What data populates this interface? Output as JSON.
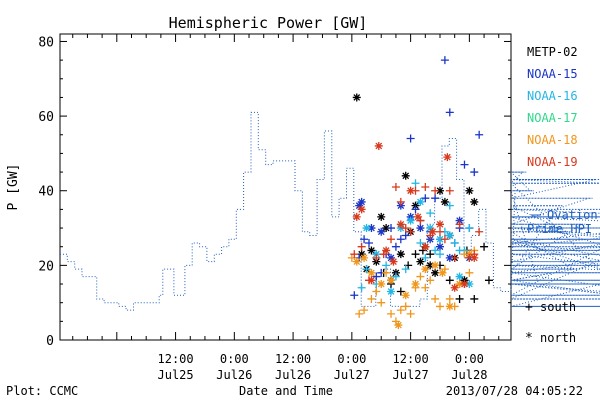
{
  "chart_data": {
    "type": "line",
    "title": "Hemispheric Power [GW]",
    "ylabel": "P [GW]",
    "xlabel": "Date and Time",
    "ylim": [
      0,
      82
    ],
    "yticks": [
      0,
      20,
      40,
      60,
      80
    ],
    "x_unit": "hours since 2013-07-24 00:00 UT",
    "xlim": [
      12.4,
      104.5
    ],
    "xticks": [
      {
        "x": 36,
        "line1": "12:00",
        "line2": "Jul25"
      },
      {
        "x": 48,
        "line1": "0:00",
        "line2": "Jul26"
      },
      {
        "x": 60,
        "line1": "12:00",
        "line2": "Jul26"
      },
      {
        "x": 72,
        "line1": "0:00",
        "line2": "Jul27"
      },
      {
        "x": 84,
        "line1": "12:00",
        "line2": "Jul27"
      },
      {
        "x": 96,
        "line1": "0:00",
        "line2": "Jul28"
      }
    ],
    "ovation": {
      "name_line1": "Ovation",
      "name_line2": "Prime HPI",
      "color": "#1e5fbf",
      "step_width": 0.75,
      "x_start": 12.4,
      "values": [
        23,
        23,
        21,
        21,
        19,
        19,
        17,
        17,
        17,
        17,
        11,
        11,
        10,
        10,
        10,
        10,
        9,
        9,
        8,
        8,
        10,
        10,
        10,
        10,
        10,
        10,
        10,
        12,
        19,
        19,
        19,
        12,
        12,
        12,
        20,
        20,
        26,
        26,
        25,
        25,
        21,
        21,
        23,
        23,
        25,
        25,
        27,
        27,
        35,
        35,
        45,
        45,
        61,
        61,
        51,
        51,
        47,
        47,
        48,
        48,
        48,
        48,
        48,
        48,
        40,
        40,
        29,
        29,
        28,
        28,
        43,
        43,
        56,
        56,
        33,
        33,
        38,
        38,
        46,
        46,
        29,
        29,
        9,
        9,
        9,
        9,
        17,
        17,
        19,
        19,
        9,
        9,
        9,
        9,
        9,
        9,
        9,
        9,
        11,
        11,
        31,
        31,
        38,
        38,
        52,
        52,
        54,
        54,
        43,
        43,
        22,
        22,
        28,
        28,
        35,
        35,
        26,
        26,
        14,
        14,
        13,
        13,
        13,
        13,
        42,
        42,
        45,
        45,
        40,
        40,
        16,
        16,
        16,
        16,
        18,
        18,
        36,
        36,
        29,
        29,
        19,
        19,
        31,
        31,
        38,
        38,
        43,
        43,
        42,
        42,
        16,
        16,
        21,
        21,
        27,
        27,
        16,
        16,
        11,
        11,
        27,
        27,
        20,
        20,
        18,
        18,
        12,
        12,
        35,
        35,
        33,
        33,
        18,
        18,
        25,
        25,
        30,
        30,
        26,
        26,
        15,
        15,
        9,
        9,
        24,
        24,
        26,
        26,
        33,
        33,
        33,
        33,
        30,
        30,
        23,
        23,
        15,
        15,
        9,
        9,
        9,
        9,
        9,
        9,
        9
      ]
    },
    "markers": {
      "south_label": "south",
      "north_label": "north",
      "south_symbol": "+",
      "north_symbol": "*"
    },
    "series": [
      {
        "name": "METP-02",
        "color": "#000000",
        "south": [
          [
            78.5,
            18
          ],
          [
            80,
            15
          ],
          [
            82,
            13
          ],
          [
            83.5,
            20
          ],
          [
            85,
            23
          ],
          [
            86.5,
            24
          ],
          [
            88,
            23
          ],
          [
            90,
            20
          ],
          [
            92,
            16
          ],
          [
            94,
            11
          ],
          [
            95.5,
            24
          ],
          [
            97,
            11
          ],
          [
            99,
            25
          ],
          [
            100,
            16
          ]
        ],
        "north": [
          [
            73,
            65
          ],
          [
            74,
            23
          ],
          [
            75,
            19
          ],
          [
            76,
            24
          ],
          [
            77,
            21
          ],
          [
            78,
            33
          ],
          [
            79,
            30
          ],
          [
            80,
            16
          ],
          [
            81,
            18
          ],
          [
            82,
            23
          ],
          [
            83,
            44
          ],
          [
            84,
            29
          ],
          [
            85,
            36
          ],
          [
            86,
            21
          ],
          [
            87,
            25
          ],
          [
            88,
            20
          ],
          [
            89,
            18
          ],
          [
            90,
            40
          ],
          [
            91,
            37
          ],
          [
            92,
            28
          ],
          [
            93,
            22
          ],
          [
            95,
            16
          ],
          [
            96,
            40
          ],
          [
            97,
            37
          ]
        ]
      },
      {
        "name": "NOAA-15",
        "color": "#1a35c7",
        "south": [
          [
            72.5,
            12
          ],
          [
            73.5,
            22
          ],
          [
            74.5,
            27
          ],
          [
            75.5,
            26
          ],
          [
            77,
            17
          ],
          [
            78,
            18
          ],
          [
            79,
            23
          ],
          [
            80,
            30
          ],
          [
            81,
            25
          ],
          [
            82,
            27
          ],
          [
            83,
            28
          ],
          [
            84,
            54
          ],
          [
            85,
            35
          ],
          [
            86,
            32
          ],
          [
            87,
            38
          ],
          [
            88,
            29
          ],
          [
            89,
            38
          ],
          [
            90,
            27
          ],
          [
            91,
            75
          ],
          [
            92,
            61
          ],
          [
            93,
            26
          ],
          [
            94,
            30
          ],
          [
            95,
            47
          ],
          [
            96,
            30
          ],
          [
            97,
            45
          ],
          [
            98,
            55
          ]
        ],
        "north": [
          [
            73.5,
            36
          ],
          [
            74,
            37
          ],
          [
            76,
            30
          ],
          [
            78,
            29
          ],
          [
            80,
            22
          ],
          [
            82,
            36
          ],
          [
            84,
            33
          ],
          [
            86,
            30
          ],
          [
            88,
            27
          ],
          [
            90,
            25
          ],
          [
            92,
            22
          ],
          [
            94,
            32
          ],
          [
            96,
            22
          ]
        ]
      },
      {
        "name": "NOAA-16",
        "color": "#22b5e6",
        "south": [
          [
            74,
            14
          ],
          [
            75,
            19
          ],
          [
            77,
            15
          ],
          [
            79,
            20
          ],
          [
            81,
            17
          ],
          [
            83,
            19
          ],
          [
            85,
            42
          ],
          [
            86,
            26
          ],
          [
            87,
            22
          ],
          [
            88,
            34
          ],
          [
            89,
            24
          ],
          [
            90,
            23
          ],
          [
            91,
            29
          ],
          [
            92,
            36
          ],
          [
            93,
            26
          ],
          [
            94,
            24
          ],
          [
            95,
            24
          ],
          [
            96,
            30
          ]
        ],
        "north": [
          [
            75,
            30
          ],
          [
            77,
            23
          ],
          [
            80,
            13
          ],
          [
            82,
            30
          ],
          [
            84,
            32
          ],
          [
            86,
            37
          ],
          [
            88,
            30
          ],
          [
            90,
            27
          ],
          [
            92,
            28
          ],
          [
            94,
            17
          ],
          [
            96,
            15
          ]
        ]
      },
      {
        "name": "NOAA-17",
        "color": "#2fd98a",
        "south": [],
        "north": []
      },
      {
        "name": "NOAA-18",
        "color": "#f0961c",
        "south": [
          [
            72,
            22
          ],
          [
            73.5,
            7
          ],
          [
            74.5,
            8
          ],
          [
            76,
            11
          ],
          [
            77,
            13
          ],
          [
            78,
            10
          ],
          [
            79,
            18
          ],
          [
            80,
            7
          ],
          [
            81,
            5
          ],
          [
            82,
            8
          ],
          [
            83,
            9
          ],
          [
            84,
            7
          ],
          [
            85,
            14
          ],
          [
            86,
            17
          ],
          [
            87,
            14
          ],
          [
            88,
            16
          ],
          [
            89,
            11
          ],
          [
            90,
            9
          ],
          [
            91,
            19
          ],
          [
            92,
            11
          ],
          [
            93,
            9
          ],
          [
            94,
            15
          ],
          [
            95,
            23
          ],
          [
            96,
            18
          ],
          [
            97,
            24
          ]
        ],
        "north": [
          [
            73,
            21
          ],
          [
            74.5,
            22
          ],
          [
            76,
            18
          ],
          [
            78,
            15
          ],
          [
            80,
            16
          ],
          [
            81.5,
            4
          ],
          [
            83,
            12
          ],
          [
            85,
            15
          ],
          [
            87,
            19
          ],
          [
            89,
            20
          ],
          [
            90.5,
            18
          ],
          [
            92,
            9
          ],
          [
            94,
            15
          ],
          [
            96,
            23
          ]
        ]
      },
      {
        "name": "NOAA-19",
        "color": "#d8391c",
        "south": [
          [
            72.5,
            23
          ],
          [
            74,
            25
          ],
          [
            75.5,
            16
          ],
          [
            77,
            22
          ],
          [
            78.5,
            23
          ],
          [
            80,
            27
          ],
          [
            81,
            41
          ],
          [
            82,
            37
          ],
          [
            83,
            30
          ],
          [
            84,
            29
          ],
          [
            85,
            40
          ],
          [
            86,
            32
          ],
          [
            87,
            41
          ],
          [
            88,
            28
          ],
          [
            89,
            40
          ],
          [
            90,
            29
          ],
          [
            91,
            27
          ],
          [
            92,
            40
          ],
          [
            93,
            22
          ],
          [
            94,
            31
          ],
          [
            95,
            15
          ],
          [
            96,
            22
          ],
          [
            97,
            23
          ],
          [
            98,
            29
          ]
        ],
        "north": [
          [
            73,
            33
          ],
          [
            74,
            35
          ],
          [
            76,
            16
          ],
          [
            77.5,
            52
          ],
          [
            79,
            24
          ],
          [
            80.5,
            21
          ],
          [
            82,
            31
          ],
          [
            84,
            40
          ],
          [
            85.5,
            33
          ],
          [
            87,
            25
          ],
          [
            88.5,
            29
          ],
          [
            90,
            31
          ],
          [
            91.5,
            49
          ],
          [
            93,
            14
          ],
          [
            95,
            15
          ],
          [
            97,
            22
          ]
        ]
      }
    ]
  },
  "footer": {
    "left": "Plot: CCMC",
    "right": "2013/07/28 04:05:22"
  }
}
